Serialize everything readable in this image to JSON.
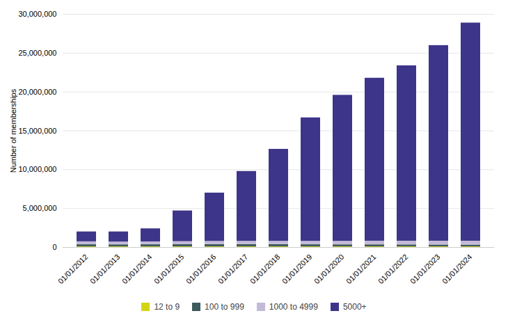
{
  "chart_data": {
    "type": "bar",
    "stacked": true,
    "categories": [
      "01/01/2012",
      "01/01/2013",
      "01/01/2014",
      "01/01/2015",
      "01/01/2016",
      "01/01/2017",
      "01/01/2018",
      "01/01/2019",
      "01/01/2020",
      "01/01/2021",
      "01/01/2022",
      "01/01/2023",
      "01/01/2024"
    ],
    "series": [
      {
        "name": "12 to 9",
        "color": "#d4d415",
        "values": [
          80000,
          80000,
          80000,
          80000,
          80000,
          80000,
          80000,
          80000,
          80000,
          80000,
          80000,
          80000,
          80000
        ]
      },
      {
        "name": "100 to 999",
        "color": "#3d5a5e",
        "values": [
          270000,
          260000,
          270000,
          280000,
          290000,
          290000,
          280000,
          270000,
          260000,
          260000,
          250000,
          240000,
          230000
        ]
      },
      {
        "name": "1000 to 4999",
        "color": "#c3bad8",
        "values": [
          380000,
          360000,
          370000,
          390000,
          410000,
          420000,
          430000,
          440000,
          450000,
          470000,
          480000,
          490000,
          500000
        ]
      },
      {
        "name": "5000+",
        "color": "#3d3589",
        "values": [
          1270000,
          1300000,
          1680000,
          3950000,
          6220000,
          8990000,
          11840000,
          15890000,
          18790000,
          20970000,
          22570000,
          25170000,
          28070000
        ]
      }
    ],
    "ylabel": "Number of memberships",
    "ylim": [
      0,
      30000000
    ],
    "yticks": [
      0,
      {
        "value": 5000000,
        "label": "5,000,000"
      },
      {
        "value": 10000000,
        "label": "10,000,000"
      },
      {
        "value": 15000000,
        "label": "15,000,000"
      },
      {
        "value": 20000000,
        "label": "20,000,000"
      },
      {
        "value": 25000000,
        "label": "25,000,000"
      },
      {
        "value": 30000000,
        "label": "30,000,000"
      }
    ],
    "grid": true,
    "legend": "bottom"
  }
}
